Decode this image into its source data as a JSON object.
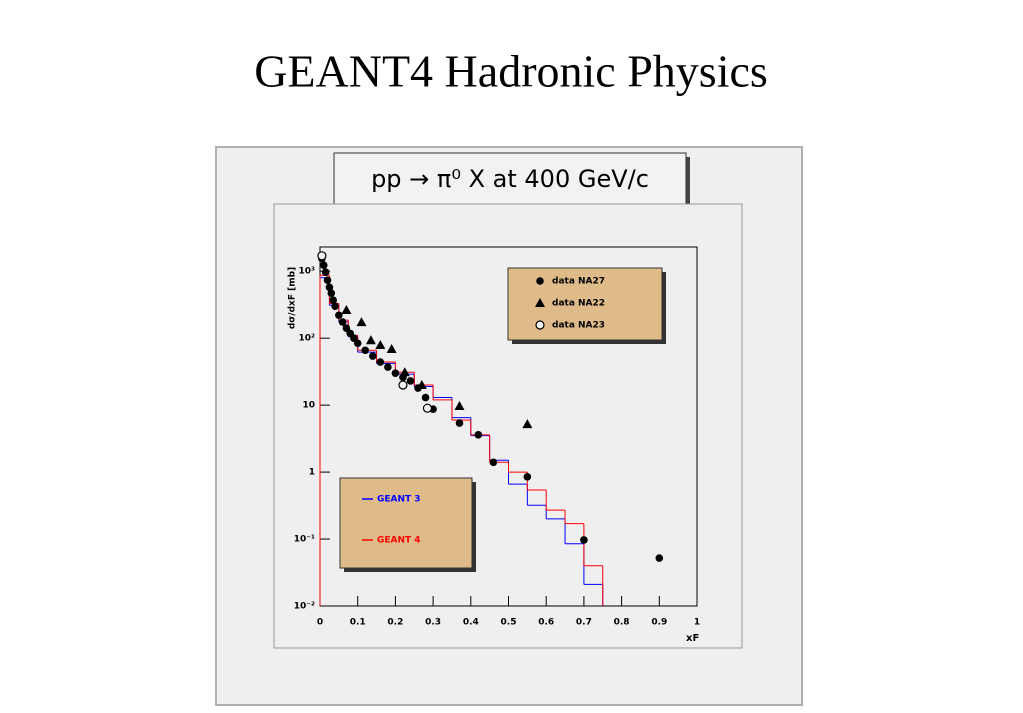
{
  "title": "GEANT4 Hadronic Physics",
  "chart_data": {
    "type": "scatter",
    "title": "pp → π⁰ X at 400 GeV/c",
    "x_label": "xF",
    "y_label": "dσ/dxF [mb]",
    "log_y": true,
    "xlim": [
      0,
      1
    ],
    "ylim": [
      0.01,
      2300
    ],
    "xticks": [
      0,
      0.1,
      0.2,
      0.3,
      0.4,
      0.5,
      0.6,
      0.7,
      0.8,
      0.9,
      1
    ],
    "yticks": [
      {
        "value": 0.01,
        "label": "10⁻²"
      },
      {
        "value": 0.1,
        "label": "10⁻¹"
      },
      1,
      10,
      {
        "value": 100,
        "label": "10²"
      },
      {
        "value": 1000,
        "label": "10³"
      }
    ],
    "series": [
      {
        "name": "data NA27",
        "marker": "circle",
        "color": "#000000",
        "x": [
          0.005,
          0.01,
          0.015,
          0.02,
          0.025,
          0.03,
          0.035,
          0.04,
          0.05,
          0.06,
          0.07,
          0.08,
          0.09,
          0.1,
          0.12,
          0.14,
          0.16,
          0.18,
          0.2,
          0.22,
          0.24,
          0.26,
          0.28,
          0.3,
          0.37,
          0.42,
          0.46,
          0.55,
          0.7,
          0.9
        ],
        "values": [
          1550,
          1230,
          966,
          735,
          575,
          470,
          370,
          300,
          220,
          174,
          141,
          118,
          100,
          84,
          66,
          54,
          44,
          37,
          30,
          26,
          23,
          18,
          13,
          8.7,
          5.4,
          3.6,
          1.4,
          0.85,
          0.097,
          0.052
        ]
      },
      {
        "name": "data NA22",
        "marker": "triangle",
        "color": "#000000",
        "x": [
          0.07,
          0.11,
          0.135,
          0.16,
          0.19,
          0.225,
          0.27,
          0.37,
          0.55
        ],
        "values": [
          263,
          174,
          93,
          79,
          69,
          31,
          20,
          9.7,
          5.2
        ]
      },
      {
        "name": "data NA23",
        "marker": "open-circle",
        "color": "#000000",
        "x": [
          0.005,
          0.22,
          0.285
        ],
        "values": [
          1700,
          20,
          9
        ]
      }
    ],
    "histograms": [
      {
        "name": "GEANT 3",
        "color": "#0000ff",
        "bins": [
          0,
          0.025,
          0.05,
          0.075,
          0.1,
          0.15,
          0.2,
          0.25,
          0.3,
          0.35,
          0.4,
          0.45,
          0.5,
          0.55,
          0.6,
          0.65,
          0.7,
          0.75
        ],
        "values": [
          800,
          310,
          175,
          105,
          62,
          42,
          29,
          19,
          13,
          6.5,
          3.5,
          1.5,
          0.66,
          0.32,
          0.2,
          0.085,
          0.021
        ]
      },
      {
        "name": "GEANT 4",
        "color": "#ff0000",
        "bins": [
          0,
          0.025,
          0.05,
          0.075,
          0.1,
          0.15,
          0.2,
          0.25,
          0.3,
          0.35,
          0.4,
          0.45,
          0.5,
          0.55,
          0.6,
          0.65,
          0.7,
          0.75
        ],
        "values": [
          870,
          330,
          186,
          110,
          66,
          44,
          31,
          20,
          12,
          6,
          3.6,
          1.4,
          1.0,
          0.54,
          0.27,
          0.17,
          0.04
        ]
      }
    ]
  }
}
